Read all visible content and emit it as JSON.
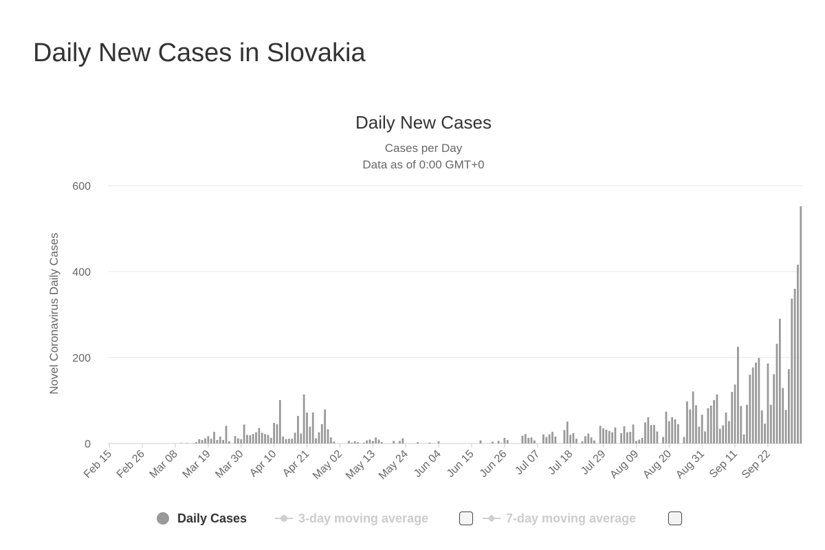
{
  "page": {
    "title": "Daily New Cases in Slovakia"
  },
  "legend": {
    "daily": "Daily Cases",
    "ma3": "3-day moving average",
    "ma7": "7-day moving average"
  },
  "colors": {
    "bar": "#999999",
    "grid": "#e6e6e6",
    "muted": "#cccccc",
    "text": "#333333"
  },
  "chart_data": {
    "type": "bar",
    "title": "Daily New Cases",
    "subtitle": "Cases per Day",
    "subtitle2": "Data as of 0:00 GMT+0",
    "ylabel": "Novel Coronavirus Daily Cases",
    "xlabel": "",
    "ylim": [
      0,
      600
    ],
    "yticks": [
      0,
      200,
      400,
      600
    ],
    "x_start": "Feb 15",
    "xtick_labels": [
      "Feb 15",
      "Feb 26",
      "Mar 08",
      "Mar 19",
      "Mar 30",
      "Apr 10",
      "Apr 21",
      "May 02",
      "May 13",
      "May 24",
      "Jun 04",
      "Jun 15",
      "Jun 26",
      "Jul 07",
      "Jul 18",
      "Jul 29",
      "Aug 09",
      "Aug 20",
      "Aug 31",
      "Sep 11",
      "Sep 22"
    ],
    "grid": true,
    "legend_position": "bottom",
    "series": [
      {
        "name": "Daily Cases",
        "values": [
          0,
          0,
          0,
          0,
          0,
          0,
          0,
          0,
          0,
          0,
          0,
          0,
          0,
          0,
          0,
          0,
          0,
          0,
          0,
          0,
          0,
          0,
          0,
          0,
          1,
          0,
          1,
          0,
          1,
          3,
          10,
          8,
          12,
          17,
          11,
          27,
          8,
          16,
          8,
          41,
          5,
          0,
          17,
          12,
          10,
          44,
          20,
          19,
          22,
          26,
          36,
          25,
          22,
          20,
          13,
          48,
          45,
          101,
          16,
          10,
          11,
          11,
          25,
          64,
          23,
          114,
          72,
          39,
          72,
          12,
          26,
          45,
          79,
          33,
          14,
          4,
          0,
          0,
          0,
          0,
          6,
          2,
          5,
          3,
          0,
          2,
          7,
          9,
          6,
          14,
          9,
          3,
          0,
          0,
          0,
          6,
          0,
          6,
          12,
          0,
          0,
          0,
          0,
          3,
          0,
          0,
          0,
          2,
          0,
          0,
          5,
          0,
          0,
          0,
          0,
          0,
          0,
          0,
          0,
          0,
          0,
          0,
          0,
          0,
          7,
          0,
          0,
          0,
          4,
          0,
          6,
          1,
          13,
          8,
          0,
          0,
          0,
          0,
          18,
          22,
          13,
          14,
          7,
          0,
          0,
          21,
          15,
          21,
          27,
          16,
          0,
          0,
          31,
          51,
          20,
          24,
          11,
          0,
          5,
          17,
          23,
          14,
          7,
          0,
          41,
          35,
          32,
          29,
          26,
          37,
          0,
          24,
          40,
          26,
          27,
          44,
          6,
          9,
          13,
          49,
          61,
          43,
          43,
          28,
          0,
          15,
          74,
          52,
          61,
          56,
          45,
          0,
          15,
          98,
          79,
          121,
          89,
          39,
          67,
          28,
          82,
          88,
          101,
          114,
          34,
          42,
          72,
          52,
          120,
          137,
          225,
          87,
          21,
          90,
          160,
          177,
          188,
          199,
          77,
          46,
          186,
          90,
          161,
          232,
          290,
          129,
          78,
          173,
          337,
          360,
          416,
          552
        ]
      }
    ]
  }
}
